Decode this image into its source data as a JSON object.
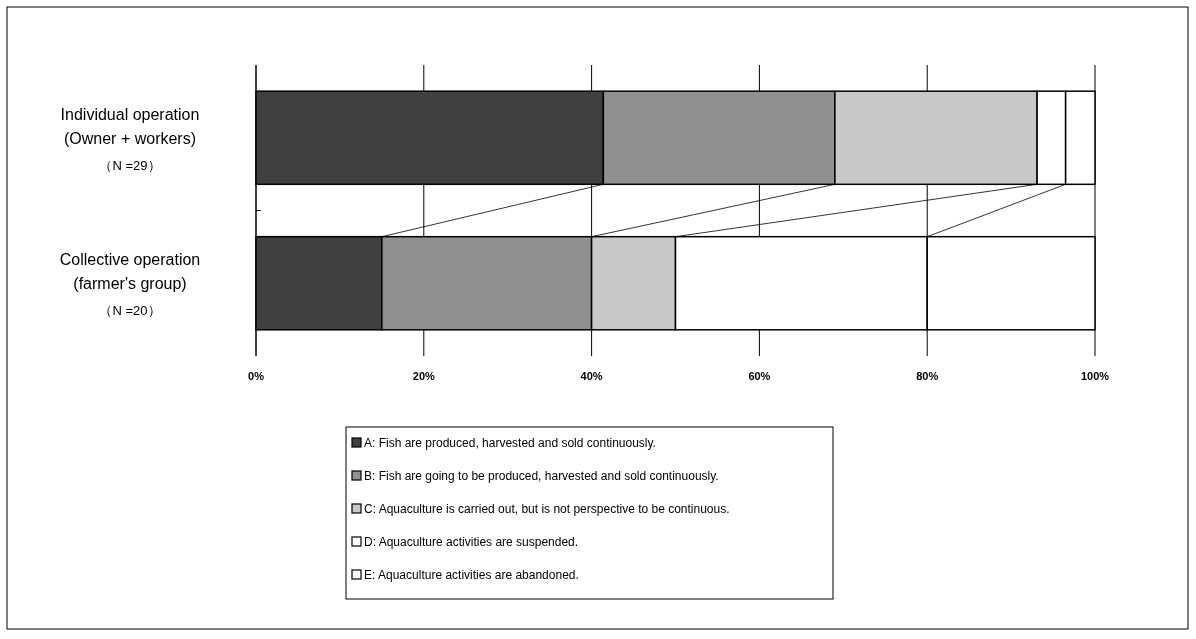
{
  "chart_data": {
    "type": "bar",
    "orientation": "horizontal",
    "stacked": true,
    "categories": [
      "Individual operation\n(Owner + workers)\n（N =29）",
      "Collective operation\n(farmer's group)\n（N =20）"
    ],
    "series": [
      {
        "name": "A: Fish are produced, harvested and sold continuously.",
        "color": "#404040",
        "values": [
          41.4,
          15
        ]
      },
      {
        "name": "B: Fish are going to be produced, harvested and sold continuously.",
        "color": "#909090",
        "values": [
          27.6,
          25
        ]
      },
      {
        "name": "C: Aquaculture is carried out, but is not perspective to be continuous.",
        "color": "#c8c8c8",
        "values": [
          24.1,
          10
        ]
      },
      {
        "name": "D: Aquaculture activities are suspended.",
        "color": "#ffffff",
        "values": [
          3.4,
          30
        ]
      },
      {
        "name": "E: Aquaculture activities are abandoned.",
        "color": "#ffffff",
        "values": [
          3.5,
          20
        ]
      }
    ],
    "xlim": [
      0,
      100
    ],
    "xticks": [
      {
        "value": 0,
        "label": "0%"
      },
      {
        "value": 20,
        "label": "20%"
      },
      {
        "value": 40,
        "label": "40%"
      },
      {
        "value": 60,
        "label": "60%"
      },
      {
        "value": 80,
        "label": "80%"
      },
      {
        "value": 100,
        "label": "100%"
      }
    ],
    "grid": "x",
    "legend": "bottom"
  }
}
